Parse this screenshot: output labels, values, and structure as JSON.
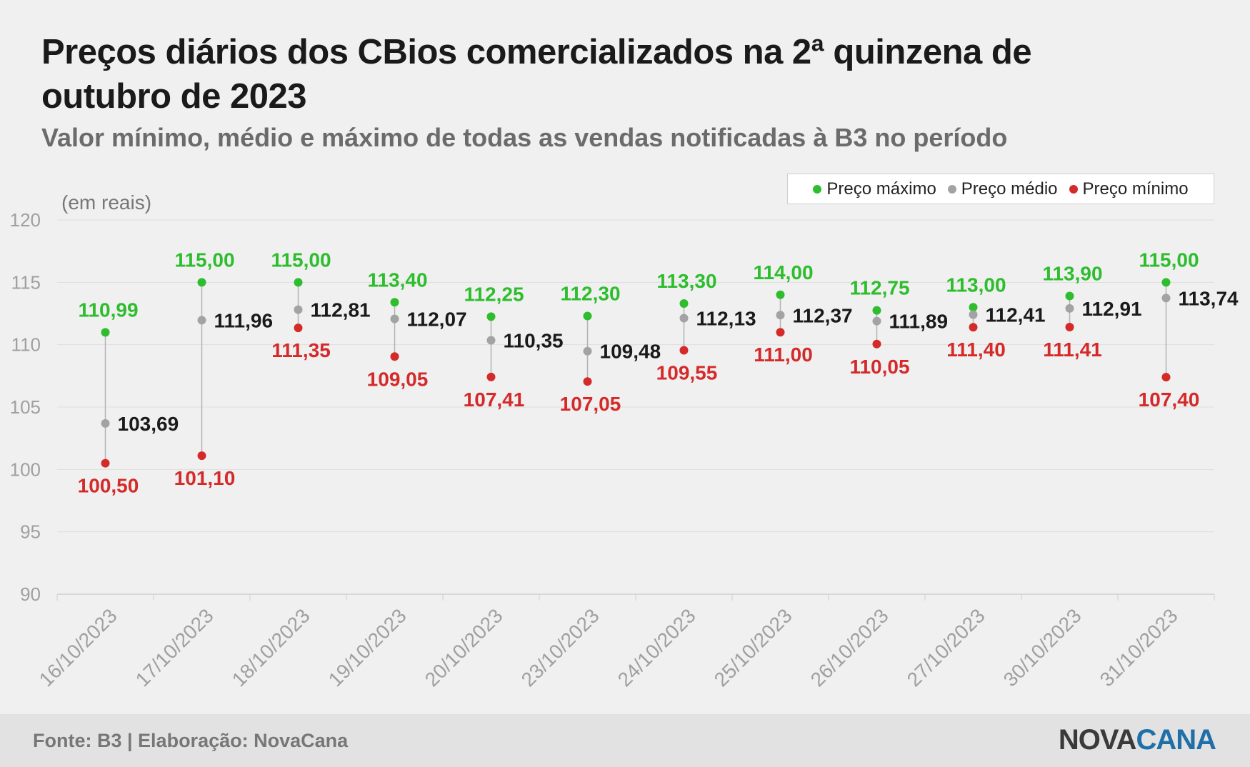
{
  "header": {
    "title": "Preços diários dos CBios comercializados na 2ª quinzena de outubro de 2023",
    "subtitle": "Valor mínimo, médio e máximo de todas as vendas notificadas à B3 no período"
  },
  "legend": {
    "max_label": "Preço máximo",
    "avg_label": "Preço médio",
    "min_label": "Preço mínimo"
  },
  "unit_label": "(em reais)",
  "footer": {
    "source": "Fonte: B3 | Elaboração: NovaCana",
    "brand_part1": "NOVA",
    "brand_part2": "CANA"
  },
  "colors": {
    "max": "#2dbd2d",
    "avg": "#a3a3a3",
    "min": "#d42a2a",
    "avg_label": "#1a1a1a",
    "grid": "#dedede",
    "axis_text": "#a0a0a0"
  },
  "chart_data": {
    "type": "scatter",
    "categories": [
      "16/10/2023",
      "17/10/2023",
      "18/10/2023",
      "19/10/2023",
      "20/10/2023",
      "23/10/2023",
      "24/10/2023",
      "25/10/2023",
      "26/10/2023",
      "27/10/2023",
      "30/10/2023",
      "31/10/2023"
    ],
    "series": [
      {
        "name": "Preço máximo",
        "values": [
          110.99,
          115.0,
          115.0,
          113.4,
          112.25,
          112.3,
          113.3,
          114.0,
          112.75,
          113.0,
          113.9,
          115.0
        ],
        "labels": [
          "110,99",
          "115,00",
          "115,00",
          "113,40",
          "112,25",
          "112,30",
          "113,30",
          "114,00",
          "112,75",
          "113,00",
          "113,90",
          "115,00"
        ]
      },
      {
        "name": "Preço médio",
        "values": [
          103.69,
          111.96,
          112.81,
          112.07,
          110.35,
          109.48,
          112.13,
          112.37,
          111.89,
          112.41,
          112.91,
          113.74
        ],
        "labels": [
          "103,69",
          "111,96",
          "112,81",
          "112,07",
          "110,35",
          "109,48",
          "112,13",
          "112,37",
          "111,89",
          "112,41",
          "112,91",
          "113,74"
        ]
      },
      {
        "name": "Preço mínimo",
        "values": [
          100.5,
          101.1,
          111.35,
          109.05,
          107.41,
          107.05,
          109.55,
          111.0,
          110.05,
          111.4,
          111.41,
          107.4
        ],
        "labels": [
          "100,50",
          "101,10",
          "111,35",
          "109,05",
          "107,41",
          "107,05",
          "109,55",
          "111,00",
          "110,05",
          "111,40",
          "111,41",
          "107,40"
        ]
      }
    ],
    "ylim": [
      90,
      120
    ],
    "yticks": [
      90,
      95,
      100,
      105,
      110,
      115,
      120
    ],
    "ylabel": "(em reais)",
    "grid": true,
    "legend_position": "top-right"
  }
}
